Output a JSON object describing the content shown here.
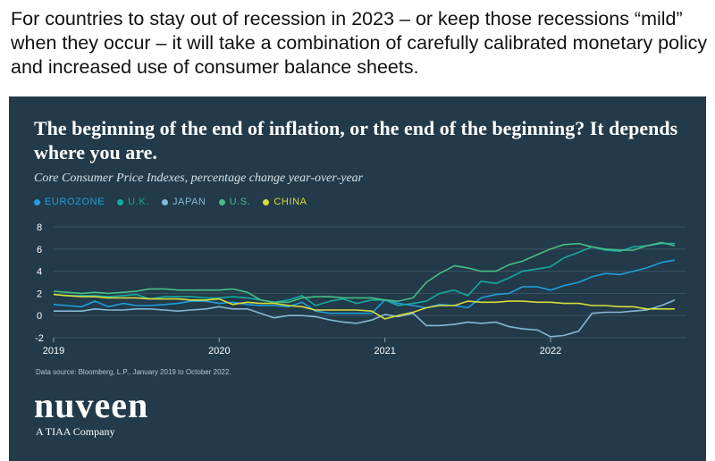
{
  "caption": "For countries to stay out of recession in 2023 – or keep those recessions “mild” when they occur – it will take a combination of carefully calibrated monetary policy and increased use of consumer balance sheets.",
  "chart_data": {
    "type": "line",
    "title": "The beginning of the end of inflation, or the end of the beginning? It depends where you are.",
    "subtitle": "Core Consumer Price Indexes, percentage change year-over-year",
    "xlabel": "",
    "ylabel": "",
    "xlim": [
      2019.0,
      2022.82
    ],
    "ylim": [
      -2,
      8
    ],
    "yticks": [
      8,
      6,
      4,
      2,
      0,
      -2
    ],
    "xticks": [
      {
        "label": "2019",
        "value": 2019.0
      },
      {
        "label": "2020",
        "value": 2020.0
      },
      {
        "label": "2021",
        "value": 2021.0
      },
      {
        "label": "2022",
        "value": 2022.0
      }
    ],
    "grid": true,
    "legend_position": "top-left",
    "x": [
      2019.0,
      2019.08,
      2019.17,
      2019.25,
      2019.33,
      2019.42,
      2019.5,
      2019.58,
      2019.67,
      2019.75,
      2019.83,
      2019.92,
      2020.0,
      2020.08,
      2020.17,
      2020.25,
      2020.33,
      2020.42,
      2020.5,
      2020.58,
      2020.67,
      2020.75,
      2020.83,
      2020.92,
      2021.0,
      2021.08,
      2021.17,
      2021.25,
      2021.33,
      2021.42,
      2021.5,
      2021.58,
      2021.67,
      2021.75,
      2021.83,
      2021.92,
      2022.0,
      2022.08,
      2022.17,
      2022.25,
      2022.33,
      2022.42,
      2022.5,
      2022.58,
      2022.67,
      2022.75
    ],
    "series": [
      {
        "name": "EUROZONE",
        "color": "#1f9fdb",
        "values": [
          1.0,
          0.9,
          0.8,
          1.3,
          0.8,
          1.1,
          0.9,
          0.9,
          1.0,
          1.1,
          1.3,
          1.3,
          1.1,
          1.2,
          1.0,
          0.9,
          0.9,
          0.8,
          1.2,
          0.4,
          0.2,
          0.2,
          0.2,
          0.2,
          1.4,
          1.1,
          0.9,
          0.7,
          1.0,
          0.9,
          0.7,
          1.6,
          1.9,
          2.0,
          2.6,
          2.6,
          2.3,
          2.7,
          3.0,
          3.5,
          3.8,
          3.7,
          4.0,
          4.3,
          4.8,
          5.0
        ]
      },
      {
        "name": "U.K.",
        "color": "#17a9a0",
        "values": [
          1.9,
          1.8,
          1.8,
          1.8,
          1.7,
          1.8,
          1.9,
          1.5,
          1.7,
          1.7,
          1.7,
          1.6,
          1.6,
          1.7,
          1.6,
          1.4,
          1.2,
          1.4,
          1.8,
          0.9,
          1.3,
          1.5,
          1.1,
          1.4,
          1.4,
          0.9,
          1.1,
          1.3,
          2.0,
          2.3,
          1.8,
          3.1,
          2.9,
          3.4,
          4.0,
          4.2,
          4.4,
          5.2,
          5.7,
          6.2,
          5.9,
          5.8,
          6.2,
          6.3,
          6.5,
          6.5
        ]
      },
      {
        "name": "JAPAN",
        "color": "#86b8d4",
        "values": [
          0.4,
          0.4,
          0.4,
          0.6,
          0.5,
          0.5,
          0.6,
          0.6,
          0.5,
          0.4,
          0.5,
          0.6,
          0.8,
          0.6,
          0.6,
          0.2,
          -0.2,
          0.0,
          0.0,
          -0.1,
          -0.4,
          -0.6,
          -0.7,
          -0.4,
          0.1,
          -0.1,
          0.2,
          -0.9,
          -0.9,
          -0.8,
          -0.6,
          -0.7,
          -0.6,
          -1.0,
          -1.2,
          -1.3,
          -1.9,
          -1.8,
          -1.4,
          0.2,
          0.3,
          0.3,
          0.4,
          0.5,
          0.9,
          1.4
        ]
      },
      {
        "name": "U.S.",
        "color": "#46be84",
        "values": [
          2.2,
          2.1,
          2.0,
          2.1,
          2.0,
          2.1,
          2.2,
          2.4,
          2.4,
          2.3,
          2.3,
          2.3,
          2.3,
          2.4,
          2.1,
          1.4,
          1.2,
          1.2,
          1.6,
          1.7,
          1.7,
          1.6,
          1.6,
          1.6,
          1.4,
          1.3,
          1.6,
          3.0,
          3.8,
          4.5,
          4.3,
          4.0,
          4.0,
          4.6,
          4.9,
          5.5,
          6.0,
          6.4,
          6.5,
          6.2,
          6.0,
          5.9,
          5.9,
          6.3,
          6.6,
          6.3
        ]
      },
      {
        "name": "CHINA",
        "color": "#d7dd3a",
        "values": [
          1.9,
          1.8,
          1.7,
          1.7,
          1.6,
          1.6,
          1.6,
          1.5,
          1.5,
          1.5,
          1.4,
          1.4,
          1.5,
          1.0,
          1.2,
          1.1,
          1.1,
          0.9,
          0.8,
          0.5,
          0.5,
          0.5,
          0.5,
          0.4,
          -0.3,
          0.0,
          0.3,
          0.7,
          0.9,
          0.9,
          1.3,
          1.2,
          1.2,
          1.3,
          1.3,
          1.2,
          1.2,
          1.1,
          1.1,
          0.9,
          0.9,
          0.8,
          0.8,
          0.6,
          0.6,
          0.6
        ]
      }
    ]
  },
  "source_note": "Data source: Bloomberg, L.P., January 2019 to October 2022.",
  "brand": {
    "name": "nuveen",
    "tagline": "A TIAA Company"
  },
  "colors": {
    "panel": "#223a4a",
    "grid": "#3b5565",
    "axis_text": "#ffffff"
  }
}
